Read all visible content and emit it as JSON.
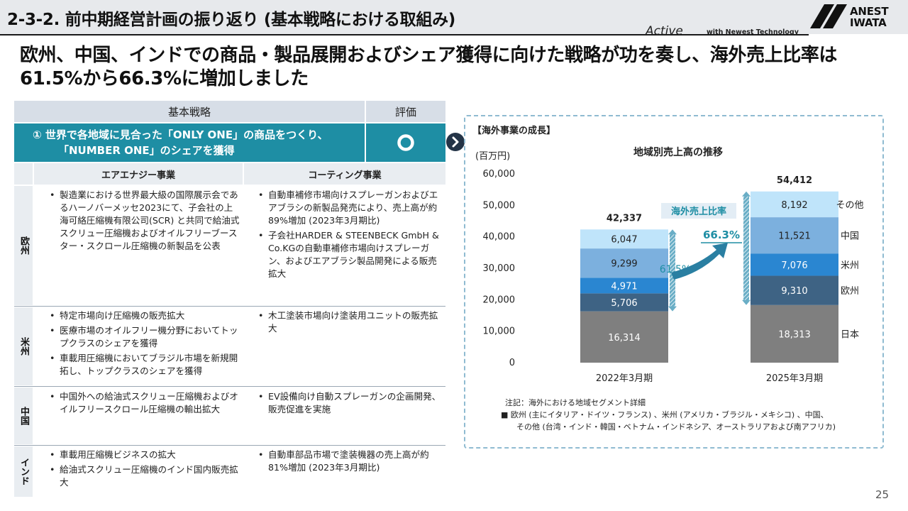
{
  "header": {
    "section_title": "2-3-2. 前中期経営計画の振り返り (基本戦略における取組み)",
    "tagline_brand": "Active",
    "tagline_text": "with Newest Technology",
    "logo_line1": "ANEST",
    "logo_line2": "IWATA"
  },
  "headline": "欧州、中国、インドでの商品・製品展開およびシェア獲得に向けた戦略が功を奏し、海外売上比率は61.5%から66.3%に増加しました",
  "table": {
    "col_strategy": "基本戦略",
    "col_eval": "評価",
    "strategy_line1": "① 世界で各地域に見合った「ONLY ONE」の商品をつくり、",
    "strategy_line2": "「NUMBER ONE」のシェアを獲得",
    "eval_symbol": "○",
    "sub_air": "エアエナジー事業",
    "sub_coating": "コーティング事業",
    "rows": [
      {
        "region": "欧州",
        "air": [
          "製造業における世界最大級の国際展示会であるハーノバーメッセ2023にて、子会社の上海可絡圧縮機有限公司(SCR) と共同で給油式スクリュー圧縮機およびオイルフリーブースター・スクロール圧縮機の新製品を公表"
        ],
        "coating": [
          "自動車補修市場向けスプレーガンおよびエアブラシの新製品発売により、売上高が約89%増加 (2023年3月期比)",
          "子会社HARDER & STEENBECK GmbH & Co.KGの自動車補修市場向けスプレーガン、およびエアブラシ製品開発による販売拡大"
        ]
      },
      {
        "region": "米州",
        "air": [
          "特定市場向け圧縮機の販売拡大",
          "医療市場のオイルフリー機分野においてトップクラスのシェアを獲得",
          "車載用圧縮機においてブラジル市場を新規開拓し、トップクラスのシェアを獲得"
        ],
        "coating": [
          "木工塗装市場向け塗装用ユニットの販売拡大"
        ]
      },
      {
        "region": "中国",
        "air": [
          "中国外への給油式スクリュー圧縮機およびオイルフリースクロール圧縮機の輸出拡大"
        ],
        "coating": [
          "EV設備向け自動スプレーガンの企画開発、販売促進を実施"
        ]
      },
      {
        "region": "インド",
        "air": [
          "車載用圧縮機ビジネスの拡大",
          "給油式スクリュー圧縮機のインド国内販売拡大"
        ],
        "coating": [
          "自動車部品市場で塗装機器の売上高が約81%増加 (2023年3月期比)"
        ]
      }
    ]
  },
  "chart_panel": {
    "box_title": "【海外事業の成長】",
    "ratio_label": "海外売上比率",
    "note_line1": "注記：海外における地域セグメント詳細",
    "note_line2": "■ 欧州 (主にイタリア・ドイツ・フランス) 、米州 (アメリカ・ブラジル・メキシコ) 、中国、",
    "note_line3": "その他 (台湾・インド・韓国・ベトナム・インドネシア、オーストラリアおよび南アフリカ)"
  },
  "chart_data": {
    "type": "bar",
    "stacked": true,
    "title": "地域別売上高の推移",
    "unit_label": "(百万円)",
    "categories": [
      "2022年3月期",
      "2025年3月期"
    ],
    "series": [
      {
        "name": "日本",
        "values": [
          16314,
          18313
        ],
        "color": "#7f7f7f"
      },
      {
        "name": "欧州",
        "values": [
          5706,
          9310
        ],
        "color": "#3e6384"
      },
      {
        "name": "米州",
        "values": [
          4971,
          7076
        ],
        "color": "#2a86d1"
      },
      {
        "name": "中国",
        "values": [
          9299,
          11521
        ],
        "color": "#7cb0de"
      },
      {
        "name": "その他",
        "values": [
          6047,
          8192
        ],
        "color": "#bfe4fa"
      }
    ],
    "totals": [
      "42,337",
      "54,412"
    ],
    "overseas_ratio": [
      "61.5%",
      "66.3%"
    ],
    "yticks": [
      "0",
      "10,000",
      "20,000",
      "30,000",
      "40,000",
      "50,000",
      "60,000"
    ],
    "ylim": [
      0,
      60000
    ]
  },
  "page_number": "25"
}
